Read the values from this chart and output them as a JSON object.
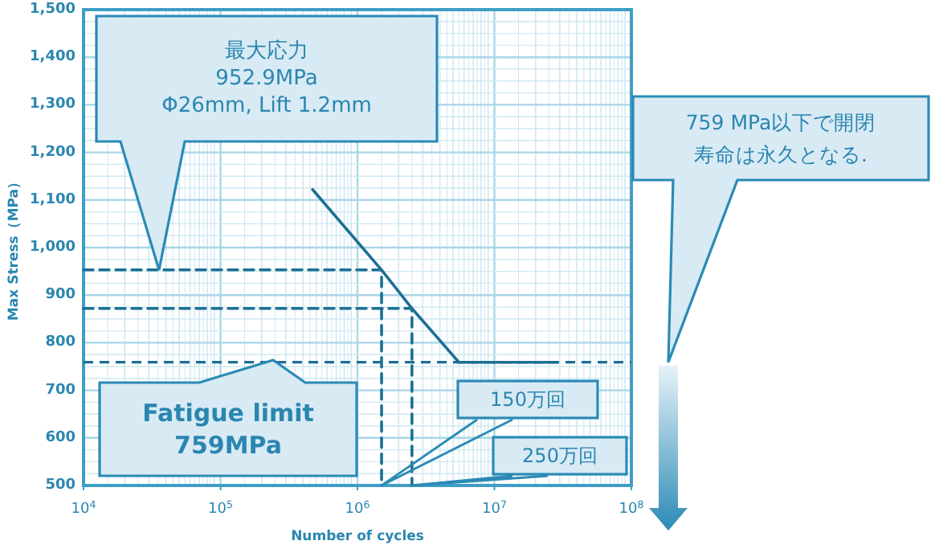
{
  "chart_data": {
    "type": "line",
    "xlabel": "Number of cycles",
    "ylabel": "Max Stress（MPa）",
    "log": "x",
    "grid": true,
    "marker": "none",
    "xlim": [
      10000,
      100000000
    ],
    "xticks": [
      {
        "value": 10000,
        "label": "10$^{4}$"
      },
      {
        "value": 100000,
        "label": "10$^{5}$"
      },
      {
        "value": 1000000,
        "label": "10$^{6}$"
      },
      {
        "value": 10000000,
        "label": "10$^{7}$"
      },
      {
        "value": 100000000,
        "label": "10$^{8}$"
      }
    ],
    "ylim": [
      500,
      1500
    ],
    "yticks": [
      500,
      600,
      700,
      800,
      900,
      {
        "value": 1000,
        "label": "1,000"
      },
      {
        "value": 1100,
        "label": "1,100"
      },
      {
        "value": 1200,
        "label": "1,200"
      },
      {
        "value": 1300,
        "label": "1,300"
      },
      {
        "value": 1400,
        "label": "1,400"
      },
      {
        "value": 1500,
        "label": "1,500"
      }
    ],
    "series": [
      {
        "color": "#1d6f93",
        "line_style": "solid",
        "x": [
          470000,
          1500000,
          2500000,
          5500000,
          29000000
        ],
        "values": [
          1122,
          953,
          872,
          759,
          759
        ]
      },
      {
        "color": "#1d6f93",
        "line_style": "dashed",
        "x": [
          10000,
          1500000,
          1500000
        ],
        "values": [
          953,
          953,
          500
        ]
      },
      {
        "color": "#1d6f93",
        "line_style": "dashed",
        "x": [
          10000,
          2500000,
          2500000
        ],
        "values": [
          872,
          872,
          500
        ]
      }
    ],
    "ref_lines": [
      {
        "axis": "y",
        "value": 759,
        "color": "#1d6f93",
        "line_style": "dashed"
      }
    ],
    "annotations": [
      "最大応力\n952.9MPa\nΦ26mm, Lift 1.2mm",
      "**Fatigue limit\n759MPa**",
      "150万回",
      "250万回",
      "759 MPa以下で開閉",
      "寿命は永久となる."
    ]
  }
}
